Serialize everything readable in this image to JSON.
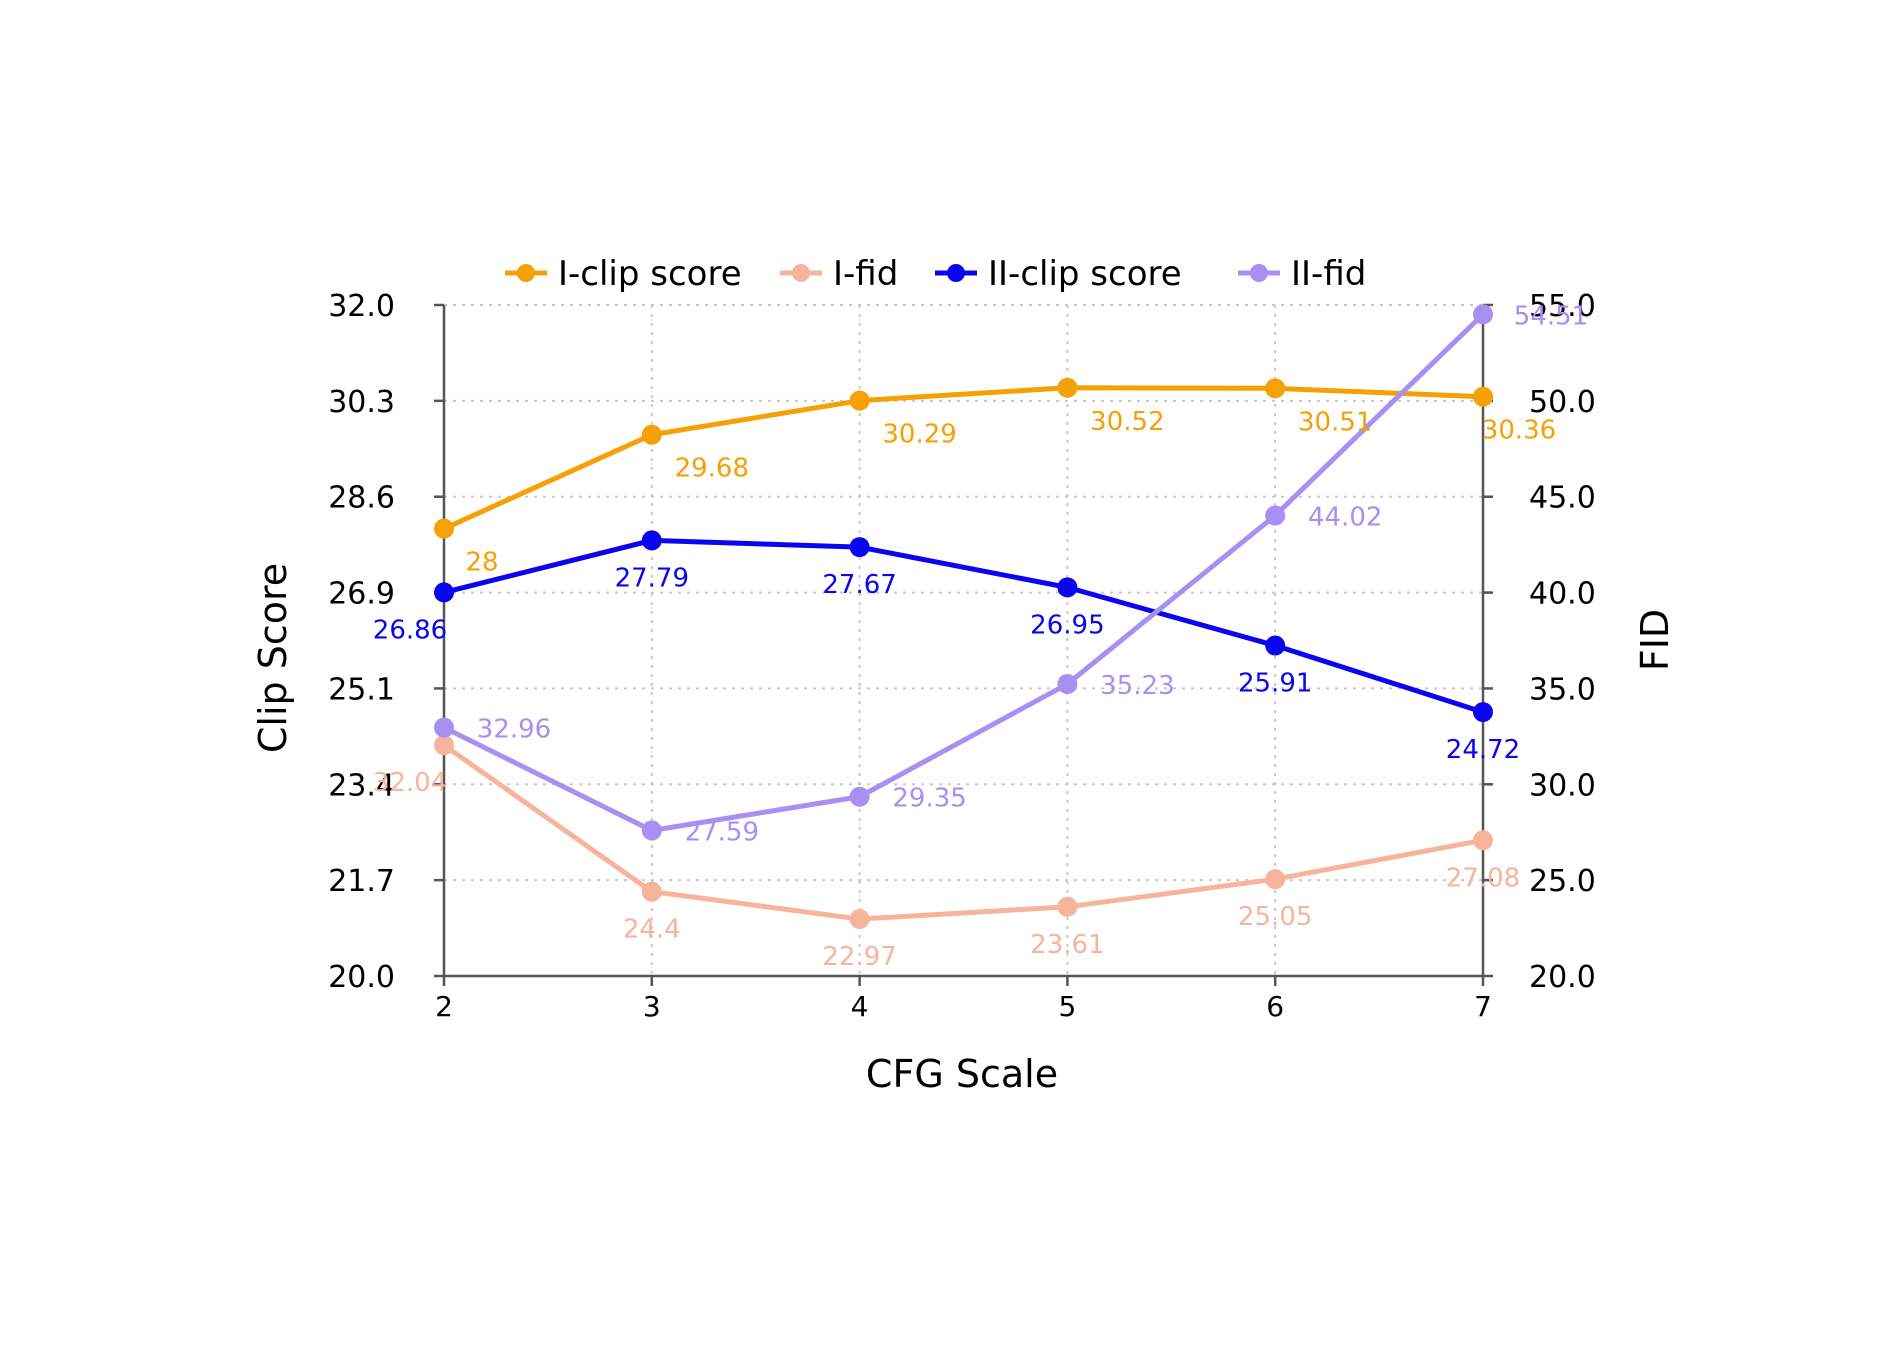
{
  "chart_data": {
    "type": "line",
    "title": "",
    "xlabel": "CFG Scale",
    "ylabel_left": "Clip Score",
    "ylabel_right": "FID",
    "x": [
      2,
      3,
      4,
      5,
      6,
      7
    ],
    "x_ticks": [
      "2",
      "3",
      "4",
      "5",
      "6",
      "7"
    ],
    "y_left_ticks": [
      "20.0",
      "21.7",
      "23.4",
      "25.1",
      "26.9",
      "28.6",
      "30.3",
      "32.0"
    ],
    "y_right_ticks": [
      "20.0",
      "25.0",
      "30.0",
      "35.0",
      "40.0",
      "45.0",
      "50.0",
      "55.0"
    ],
    "y_left_range": [
      20.0,
      32.0
    ],
    "y_right_range": [
      20.0,
      55.0
    ],
    "grid": true,
    "legend_position": "top",
    "series": [
      {
        "name": "I-clip score",
        "axis": "left",
        "color": "#F5A105",
        "values": [
          28,
          29.68,
          30.29,
          30.52,
          30.51,
          30.36
        ],
        "labels": [
          "28",
          "29.68",
          "30.29",
          "30.52",
          "30.51",
          "30.36"
        ]
      },
      {
        "name": "I-fid",
        "axis": "right",
        "color": "#F7B49C",
        "values": [
          32.04,
          24.4,
          22.97,
          23.61,
          25.05,
          27.08
        ],
        "labels": [
          "32.04",
          "24.4",
          "22.97",
          "23.61",
          "25.05",
          "27.08"
        ]
      },
      {
        "name": "II-clip score",
        "axis": "left",
        "color": "#0A05EE",
        "values": [
          26.86,
          27.79,
          27.67,
          26.95,
          25.91,
          24.72
        ],
        "labels": [
          "26.86",
          "27.79",
          "27.67",
          "26.95",
          "25.91",
          "24.72"
        ]
      },
      {
        "name": "II-fid",
        "axis": "right",
        "color": "#A890F2",
        "values": [
          32.96,
          27.59,
          29.35,
          35.23,
          44.02,
          54.51
        ],
        "labels": [
          "32.96",
          "27.59",
          "29.35",
          "35.23",
          "44.02",
          "54.51"
        ]
      }
    ]
  }
}
